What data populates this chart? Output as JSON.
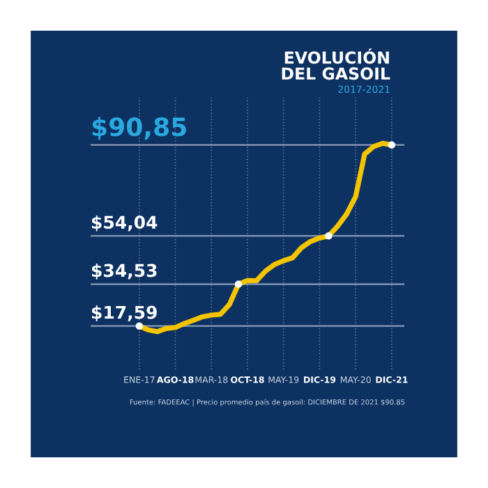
{
  "chart_data": {
    "type": "line",
    "title": "EVOLUCIÓN\nDEL GASOIL",
    "subtitle": "2017-2021",
    "annotations": [
      "Fuente: FADEEAC | Precio promedio país de gasoil: DICIEMBRE DE 2021 $90.85"
    ],
    "categories": [
      "ENE-17",
      null,
      null,
      null,
      "AGO-18",
      null,
      null,
      null,
      "MAR-18",
      null,
      null,
      null,
      "OCT-18",
      null,
      null,
      null,
      "MAY-19",
      null,
      null,
      null,
      "DIC-19",
      null,
      null,
      null,
      "MAY-20",
      null,
      null,
      null,
      "DIC-21"
    ],
    "ylim": [
      0,
      110
    ],
    "tick_labels": "x",
    "grid": "x",
    "line_style": "solid",
    "series": [
      {
        "color": "#f5c400",
        "values": [
          17.59,
          16.0,
          15.3,
          16.6,
          17.0,
          18.6,
          19.9,
          21.3,
          22.0,
          22.3,
          26.3,
          34.53,
          36.0,
          35.9,
          39.8,
          42.5,
          44.0,
          45.2,
          49.3,
          51.8,
          53.2,
          54.04,
          58.0,
          62.9,
          70.0,
          87.2,
          90.2,
          91.5,
          90.85
        ]
      },
      {
        "type": "scatter",
        "color": "#ffffff",
        "marker": "circle",
        "values": [
          17.59,
          null,
          null,
          null,
          null,
          null,
          null,
          null,
          null,
          null,
          null,
          34.53,
          null,
          null,
          null,
          null,
          null,
          null,
          null,
          null,
          null,
          54.04,
          null,
          null,
          null,
          null,
          null,
          null,
          90.85
        ]
      }
    ],
    "ref_lines": [
      {
        "axis": "y",
        "value": 17.59,
        "label": "$17,59"
      },
      {
        "axis": "y",
        "value": 34.53,
        "label": "$34,53"
      },
      {
        "axis": "y",
        "value": 54.04,
        "label": "$54,04"
      },
      {
        "axis": "y",
        "value": 90.85,
        "label": "$90,85"
      }
    ]
  }
}
